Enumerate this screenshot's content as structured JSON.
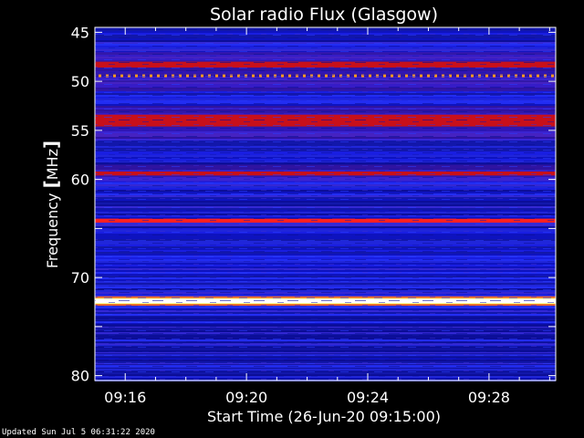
{
  "chart_data": {
    "type": "heatmap",
    "title": "Solar radio Flux (Glasgow)",
    "xlabel": "Start Time (26-Jun-20 09:15:00)",
    "ylabel_text": "Frequency ",
    "ylabel_unit": "MHz",
    "x_start_min": 0,
    "x_end_min": 15.2,
    "x_ticks": [
      {
        "t": 1,
        "label": "09:16"
      },
      {
        "t": 5,
        "label": "09:20"
      },
      {
        "t": 9,
        "label": "09:24"
      },
      {
        "t": 13,
        "label": "09:28"
      }
    ],
    "ylim_mhz": [
      44.5,
      80.5
    ],
    "y_ticks": [
      {
        "v": 45,
        "label": "45"
      },
      {
        "v": 50,
        "label": "50"
      },
      {
        "v": 55,
        "label": "55"
      },
      {
        "v": 60,
        "label": "60"
      },
      {
        "v": 70,
        "label": "70"
      },
      {
        "v": 80,
        "label": "80"
      }
    ],
    "y_minor_ticks": [
      65,
      75
    ],
    "bands": [
      {
        "f_low": 48.0,
        "f_high": 48.6,
        "level": "red"
      },
      {
        "f_low": 49.3,
        "f_high": 49.5,
        "level": "orange-dashed"
      },
      {
        "f_low": 53.4,
        "f_high": 54.6,
        "level": "red"
      },
      {
        "f_low": 59.2,
        "f_high": 59.6,
        "level": "red"
      },
      {
        "f_low": 64.0,
        "f_high": 64.4,
        "level": "bright-red"
      },
      {
        "f_low": 72.1,
        "f_high": 72.7,
        "level": "white-yellow"
      }
    ],
    "colors": {
      "background": "#000000",
      "low": "#1a1fe0",
      "mid": "#6a16a8",
      "red": "#c8101a",
      "bright": "#ff2020",
      "hot": "#ffff80"
    }
  },
  "footer": "Updated Sun Jul  5 06:31:22 2020"
}
